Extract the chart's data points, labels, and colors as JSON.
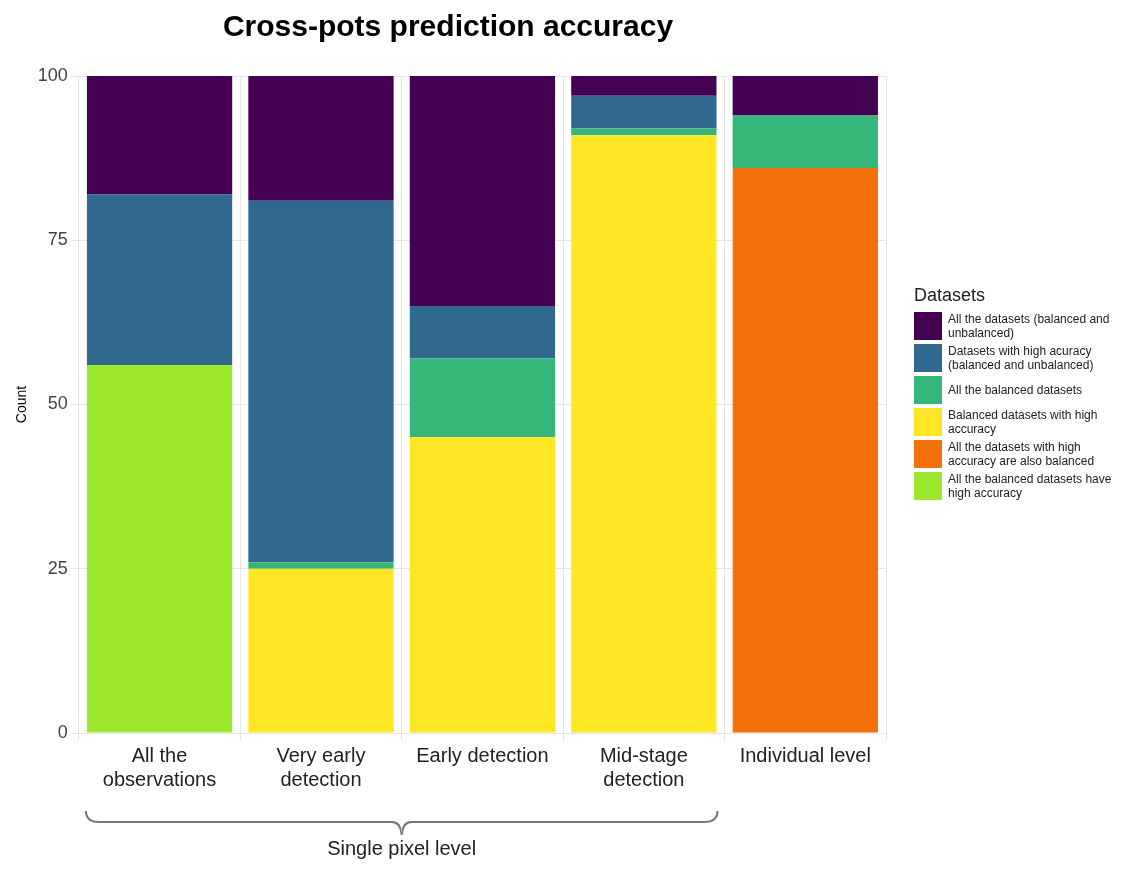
{
  "chart_data": {
    "type": "bar",
    "title": "Cross-pots prediction accuracy",
    "ylabel": "Count",
    "legend_title": "Datasets",
    "categories": [
      "All the observations",
      "Very early detection",
      "Early detection",
      "Mid-stage detection",
      "Individual level"
    ],
    "stacked": true,
    "ylim": [
      0,
      100
    ],
    "yticks": [
      0,
      25,
      50,
      75,
      100
    ],
    "grid": true,
    "legend": "right",
    "annotations": [
      "Single pixel level"
    ],
    "series": [
      {
        "name": "All the balanced datasets have high accuracy",
        "color": "#9de82f",
        "values": [
          56,
          null,
          null,
          null,
          null
        ]
      },
      {
        "name": "All the datasets with high accuracy are also balanced",
        "color": "#f3700a",
        "values": [
          null,
          null,
          null,
          null,
          86
        ]
      },
      {
        "name": "Balanced datasets with high accuracy",
        "color": "#fde725",
        "values": [
          null,
          25,
          45,
          91,
          null
        ]
      },
      {
        "name": "All the balanced datasets",
        "color": "#35b779",
        "values": [
          null,
          1,
          12,
          1,
          8
        ]
      },
      {
        "name": "Datasets with high acuracy (balanced and unbalanced)",
        "color": "#31688e",
        "values": [
          26,
          55,
          8,
          5,
          null
        ]
      },
      {
        "name": "All the datasets (balanced and unbalanced)",
        "color": "#440154",
        "values": [
          18,
          19,
          35,
          3,
          6
        ]
      }
    ]
  }
}
